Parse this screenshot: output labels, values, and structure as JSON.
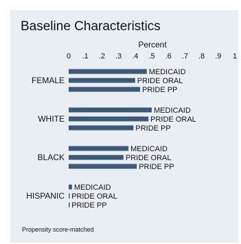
{
  "chart_data": {
    "type": "bar",
    "orientation": "horizontal",
    "title": "Baseline Characteristics",
    "xlabel": "Percent",
    "xlim": [
      0,
      1
    ],
    "xticks": [
      "0",
      ".1",
      ".2",
      ".3",
      ".4",
      ".5",
      ".6",
      ".7",
      ".8",
      ".9",
      "1"
    ],
    "axis_position": "top",
    "grid": false,
    "bar_color": "#3c5a78",
    "background_color": "#e9eef3",
    "groups": [
      {
        "name": "FEMALE",
        "bars": [
          {
            "label": "MEDICAID",
            "value": 0.47
          },
          {
            "label": "PRIDE ORAL",
            "value": 0.4
          },
          {
            "label": "PRIDE PP",
            "value": 0.43
          }
        ]
      },
      {
        "name": "WHITE",
        "bars": [
          {
            "label": "MEDICAID",
            "value": 0.5
          },
          {
            "label": "PRIDE ORAL",
            "value": 0.48
          },
          {
            "label": "PRIDE PP",
            "value": 0.39
          }
        ]
      },
      {
        "name": "BLACK",
        "bars": [
          {
            "label": "MEDICAID",
            "value": 0.36
          },
          {
            "label": "PRIDE ORAL",
            "value": 0.33
          },
          {
            "label": "PRIDE PP",
            "value": 0.41
          }
        ]
      },
      {
        "name": "HISPANIC",
        "bars": [
          {
            "label": "MEDICAID",
            "value": 0.02
          },
          {
            "label": "PRIDE ORAL",
            "value": 0.005
          },
          {
            "label": "PRIDE PP",
            "value": 0.005
          }
        ]
      }
    ],
    "note": "Propensity score-matched"
  }
}
